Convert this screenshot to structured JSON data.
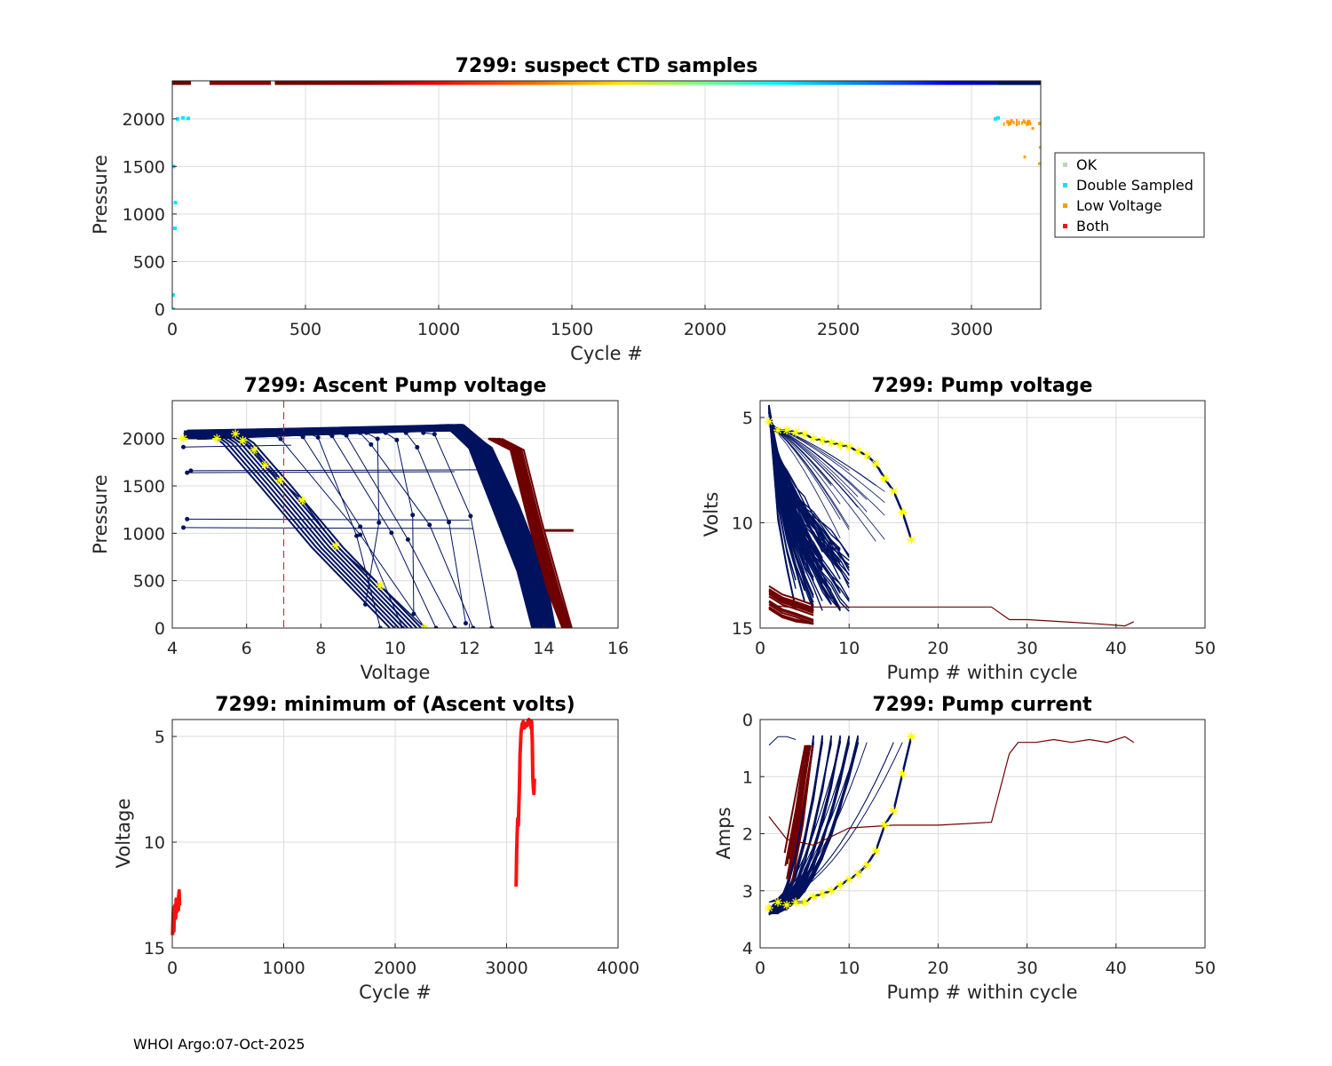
{
  "figure": {
    "footer": "WHOI Argo:07-Oct-2025",
    "colors": {
      "ok": "#b9dab2",
      "double": "#00e6ff",
      "low": "#ff9a00",
      "both": "#ee1122",
      "navy": "#00125e",
      "maroon": "#6e0000",
      "red": "#ff1010",
      "yellow": "#ffff00",
      "grid": "#dcdcdc"
    }
  },
  "chart_data": [
    {
      "id": "suspect",
      "type": "scatter",
      "title": "7299: suspect CTD samples",
      "xlabel": "Cycle #",
      "ylabel": "Pressure",
      "xlim": [
        0,
        3260
      ],
      "ylim": [
        2400,
        0
      ],
      "xticks": [
        0,
        500,
        1000,
        1500,
        2000,
        2500,
        3000
      ],
      "yticks": [
        0,
        500,
        1000,
        1500,
        2000
      ],
      "legend": [
        "OK",
        "Double Sampled",
        "Low Voltage",
        "Both"
      ],
      "legend_position": "outside-right",
      "series": [
        {
          "name": "OK",
          "regions": [
            [
              0,
              68,
              0,
              2020
            ],
            [
              3085,
              3260,
              0,
              2020
            ]
          ]
        },
        {
          "name": "Double Sampled",
          "points": [
            [
              4,
              0
            ],
            [
              3,
              150
            ],
            [
              10,
              850
            ],
            [
              12,
              1120
            ],
            [
              5,
              1500
            ],
            [
              20,
              2000
            ],
            [
              40,
              2010
            ],
            [
              60,
              2005
            ],
            [
              3090,
              2000
            ],
            [
              3100,
              2010
            ]
          ]
        },
        {
          "name": "Low Voltage",
          "points": [
            [
              3255,
              1530
            ],
            [
              3258,
              1700
            ],
            [
              3256,
              1950
            ],
            [
              3200,
              1600
            ],
            [
              3230,
              1900
            ],
            [
              3150,
              1980
            ]
          ]
        },
        {
          "name": "Both",
          "range": [
            3110,
            3260,
            2000,
            2040
          ]
        }
      ],
      "cycle_colorbar": {
        "y": 2385,
        "cycles": [
          [
            0,
            70
          ],
          [
            140,
            370
          ],
          [
            385,
            3260
          ]
        ]
      }
    },
    {
      "id": "ascent-voltage",
      "type": "line",
      "title": "7299: Ascent Pump voltage",
      "xlabel": "Voltage",
      "ylabel": "Pressure",
      "xlim": [
        4,
        16
      ],
      "ylim": [
        2400,
        0
      ],
      "xticks": [
        4,
        6,
        8,
        10,
        12,
        14,
        16
      ],
      "yticks": [
        0,
        500,
        1000,
        1500,
        2000
      ],
      "threshold_voltage": 7,
      "yellow_curve": [
        [
          10.8,
          0
        ],
        [
          9.6,
          450
        ],
        [
          8.4,
          870
        ],
        [
          7.5,
          1350
        ],
        [
          6.9,
          1560
        ],
        [
          6.5,
          1720
        ],
        [
          6.2,
          1880
        ],
        [
          5.9,
          1980
        ],
        [
          5.7,
          2050
        ],
        [
          5.2,
          2000
        ],
        [
          4.3,
          2000
        ]
      ],
      "series": [
        {
          "name": "navy-early",
          "x": [
            4.2,
            12.0,
            12.6,
            13.0,
            13.6,
            14.1
          ],
          "y": [
            2000,
            2100,
            1850,
            1000,
            300,
            0
          ]
        },
        {
          "name": "maroon-late",
          "x": [
            12.6,
            13.3,
            13.8,
            14.3,
            14.8
          ],
          "y": [
            2000,
            1900,
            1100,
            400,
            0
          ]
        }
      ]
    },
    {
      "id": "min-voltage",
      "type": "line",
      "title": "7299: minimum of (Ascent volts)",
      "xlabel": "Cycle #",
      "ylabel": "Voltage",
      "xlim": [
        0,
        4000
      ],
      "ylim": [
        4.2,
        15
      ],
      "xticks": [
        0,
        1000,
        2000,
        3000,
        4000
      ],
      "yticks": [
        5,
        10,
        15
      ],
      "series": [
        {
          "name": "early",
          "x": [
            2,
            6,
            10,
            14,
            18,
            24,
            30,
            35,
            40,
            45,
            50,
            55,
            58,
            62,
            65
          ],
          "y": [
            14.4,
            13.6,
            13.1,
            14.2,
            13.3,
            13.0,
            13.6,
            12.7,
            13.3,
            13.1,
            12.9,
            13.2,
            12.5,
            12.3,
            13.0
          ]
        },
        {
          "name": "late",
          "x": [
            3085,
            3090,
            3095,
            3100,
            3105,
            3110,
            3115,
            3120,
            3130,
            3140,
            3150,
            3160,
            3170,
            3180,
            3190,
            3200,
            3210,
            3220,
            3225,
            3230,
            3235,
            3240,
            3245,
            3250
          ],
          "y": [
            12.1,
            10.5,
            9.6,
            8.9,
            9.2,
            8.3,
            7.5,
            5.9,
            4.8,
            4.4,
            4.3,
            4.6,
            4.4,
            4.5,
            4.3,
            4.2,
            4.4,
            4.6,
            4.3,
            5.2,
            6.9,
            7.4,
            7.7,
            7.0
          ]
        }
      ]
    },
    {
      "id": "pump-voltage",
      "type": "line",
      "title": "7299: Pump voltage",
      "xlabel": "Pump # within cycle",
      "ylabel": "Volts",
      "xlim": [
        0,
        50
      ],
      "ylim": [
        4.2,
        15
      ],
      "xticks": [
        0,
        10,
        20,
        30,
        40,
        50
      ],
      "yticks": [
        5,
        10,
        15
      ],
      "yellow_curve": [
        [
          1,
          5.2
        ],
        [
          2,
          5.6
        ],
        [
          3,
          5.6
        ],
        [
          4,
          5.7
        ],
        [
          5,
          5.8
        ],
        [
          6,
          6.0
        ],
        [
          7,
          6.1
        ],
        [
          8,
          6.2
        ],
        [
          9,
          6.3
        ],
        [
          10,
          6.4
        ],
        [
          11,
          6.6
        ],
        [
          12,
          6.8
        ],
        [
          13,
          7.2
        ],
        [
          14,
          7.9
        ],
        [
          15,
          8.5
        ],
        [
          16,
          9.5
        ],
        [
          17,
          10.8
        ]
      ],
      "long_cycle": [
        [
          1,
          13.9
        ],
        [
          3,
          14.0
        ],
        [
          6,
          14.0
        ],
        [
          10,
          14.0
        ],
        [
          15,
          14.0
        ],
        [
          20,
          14.0
        ],
        [
          26,
          14.0
        ],
        [
          28,
          14.6
        ],
        [
          30,
          14.6
        ],
        [
          34,
          14.7
        ],
        [
          38,
          14.8
        ],
        [
          41,
          14.9
        ],
        [
          42,
          14.7
        ]
      ],
      "maroon_band": {
        "x": [
          1,
          6
        ],
        "y": [
          12.8,
          14.8
        ]
      }
    },
    {
      "id": "pump-current",
      "type": "line",
      "title": "7299: Pump current",
      "xlabel": "Pump # within cycle",
      "ylabel": "Amps",
      "xlim": [
        0,
        50
      ],
      "ylim": [
        0,
        4
      ],
      "xticks": [
        0,
        10,
        20,
        30,
        40,
        50
      ],
      "yticks": [
        0,
        1,
        2,
        3,
        4
      ],
      "yellow_curve": [
        [
          1,
          3.3
        ],
        [
          2,
          3.2
        ],
        [
          3,
          3.25
        ],
        [
          4,
          3.2
        ],
        [
          5,
          3.2
        ],
        [
          6,
          3.1
        ],
        [
          7,
          3.05
        ],
        [
          8,
          3.0
        ],
        [
          9,
          2.9
        ],
        [
          10,
          2.8
        ],
        [
          11,
          2.7
        ],
        [
          12,
          2.55
        ],
        [
          13,
          2.3
        ],
        [
          14,
          1.85
        ],
        [
          15,
          1.6
        ],
        [
          16,
          0.95
        ],
        [
          17,
          0.3
        ]
      ],
      "long_cycle": [
        [
          1,
          1.7
        ],
        [
          3,
          2.1
        ],
        [
          6,
          2.2
        ],
        [
          10,
          1.9
        ],
        [
          15,
          1.85
        ],
        [
          20,
          1.85
        ],
        [
          26,
          1.8
        ],
        [
          28,
          0.6
        ],
        [
          29,
          0.4
        ],
        [
          31,
          0.4
        ],
        [
          33,
          0.35
        ],
        [
          35,
          0.4
        ],
        [
          37,
          0.35
        ],
        [
          39,
          0.4
        ],
        [
          41,
          0.3
        ],
        [
          42,
          0.4
        ]
      ],
      "maroon_band": {
        "x": [
          3,
          6
        ],
        "y": [
          0.4,
          2.9
        ]
      }
    }
  ]
}
